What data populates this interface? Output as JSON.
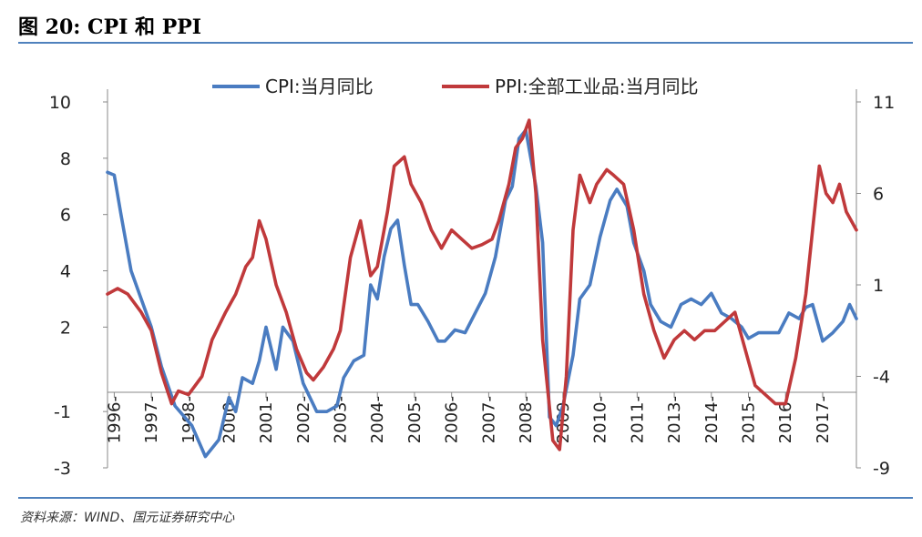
{
  "figure": {
    "title": "图 20: CPI 和 PPI",
    "source": "资料来源：WIND、国元证券研究中心"
  },
  "colors": {
    "cpi": "#4a7cc1",
    "ppi": "#c0393b",
    "rule": "#4f81bd",
    "axis": "#888888"
  },
  "chart_data": {
    "type": "line",
    "title": "",
    "legend": [
      "CPI:当月同比",
      "PPI:全部工业品:当月同比"
    ],
    "legend_position": "top",
    "left_axis": {
      "ylim": [
        -3,
        10
      ],
      "ticks": [
        -3,
        -1,
        2,
        4,
        6,
        8,
        10
      ]
    },
    "right_axis": {
      "ylim": [
        -9,
        11
      ],
      "ticks": [
        -9,
        -4,
        1,
        6,
        11
      ]
    },
    "x_range": [
      1996.0,
      2018.2
    ],
    "x_tick_labels": [
      "1996-",
      "1997-",
      "1998-",
      "2000-",
      "2001-",
      "2002-",
      "2003-",
      "2004-",
      "2005-",
      "2006-",
      "2007-",
      "2008-",
      "2009-",
      "2010-",
      "2011-",
      "2013-",
      "2014-",
      "2015-",
      "2016-",
      "2017-"
    ],
    "x_tick_positions": [
      1996.2,
      1997.3,
      1998.4,
      1999.6,
      2000.7,
      2001.8,
      2002.9,
      2004.0,
      2005.1,
      2006.2,
      2007.3,
      2008.4,
      2009.5,
      2010.6,
      2011.7,
      2012.8,
      2013.9,
      2015.0,
      2016.1,
      2017.2
    ],
    "series": [
      {
        "name": "CPI:当月同比",
        "axis": "left",
        "x": [
          1996.0,
          1996.2,
          1996.4,
          1996.7,
          1997.0,
          1997.3,
          1997.6,
          1998.0,
          1998.5,
          1998.9,
          1999.3,
          1999.6,
          1999.8,
          2000.0,
          2000.3,
          2000.5,
          2000.7,
          2001.0,
          2001.2,
          2001.5,
          2001.8,
          2002.0,
          2002.2,
          2002.5,
          2002.8,
          2003.0,
          2003.3,
          2003.6,
          2003.8,
          2004.0,
          2004.2,
          2004.4,
          2004.6,
          2004.8,
          2005.0,
          2005.2,
          2005.5,
          2005.8,
          2006.0,
          2006.3,
          2006.6,
          2006.9,
          2007.2,
          2007.5,
          2007.8,
          2008.0,
          2008.2,
          2008.4,
          2008.7,
          2008.9,
          2009.1,
          2009.3,
          2009.5,
          2009.8,
          2010.0,
          2010.3,
          2010.6,
          2010.9,
          2011.1,
          2011.4,
          2011.6,
          2011.9,
          2012.1,
          2012.4,
          2012.7,
          2013.0,
          2013.3,
          2013.6,
          2013.9,
          2014.2,
          2014.5,
          2014.8,
          2015.0,
          2015.3,
          2015.6,
          2015.9,
          2016.2,
          2016.5,
          2016.7,
          2016.9,
          2017.2,
          2017.5,
          2017.8,
          2018.0,
          2018.2
        ],
        "values": [
          7.5,
          7.4,
          6.0,
          4.0,
          3.0,
          2.0,
          0.6,
          -0.8,
          -1.5,
          -2.6,
          -2.0,
          -0.5,
          -1.0,
          0.2,
          0.0,
          0.8,
          2.0,
          0.5,
          2.0,
          1.5,
          0.0,
          -0.5,
          -1.0,
          -1.0,
          -0.8,
          0.2,
          0.8,
          1.0,
          3.5,
          3.0,
          4.5,
          5.5,
          5.8,
          4.2,
          2.8,
          2.8,
          2.2,
          1.5,
          1.5,
          1.9,
          1.8,
          2.5,
          3.2,
          4.5,
          6.5,
          7.0,
          8.7,
          9.0,
          7.0,
          5.0,
          -1.2,
          -1.5,
          -0.8,
          1.0,
          3.0,
          3.5,
          5.2,
          6.5,
          6.9,
          6.3,
          5.0,
          4.0,
          2.8,
          2.2,
          2.0,
          2.8,
          3.0,
          2.8,
          3.2,
          2.5,
          2.3,
          2.0,
          1.6,
          1.8,
          1.8,
          1.8,
          2.5,
          2.3,
          2.7,
          2.8,
          1.5,
          1.8,
          2.2,
          2.8,
          2.3
        ]
      },
      {
        "name": "PPI:全部工业品:当月同比",
        "axis": "right",
        "x": [
          1996.0,
          1996.3,
          1996.6,
          1997.0,
          1997.3,
          1997.6,
          1997.9,
          1998.1,
          1998.4,
          1998.8,
          1999.1,
          1999.5,
          1999.8,
          2000.1,
          2000.3,
          2000.5,
          2000.7,
          2001.0,
          2001.3,
          2001.6,
          2001.9,
          2002.1,
          2002.4,
          2002.7,
          2002.9,
          2003.2,
          2003.5,
          2003.8,
          2004.0,
          2004.3,
          2004.5,
          2004.8,
          2005.0,
          2005.3,
          2005.6,
          2005.9,
          2006.2,
          2006.5,
          2006.8,
          2007.1,
          2007.4,
          2007.6,
          2007.9,
          2008.1,
          2008.3,
          2008.5,
          2008.7,
          2008.9,
          2009.2,
          2009.4,
          2009.6,
          2009.8,
          2010.0,
          2010.3,
          2010.5,
          2010.8,
          2011.0,
          2011.3,
          2011.6,
          2011.9,
          2012.2,
          2012.5,
          2012.8,
          2013.1,
          2013.4,
          2013.7,
          2014.0,
          2014.3,
          2014.6,
          2014.9,
          2015.2,
          2015.5,
          2015.8,
          2016.1,
          2016.4,
          2016.7,
          2016.9,
          2017.1,
          2017.3,
          2017.5,
          2017.7,
          2017.9,
          2018.2
        ],
        "values": [
          0.5,
          0.8,
          0.5,
          -0.5,
          -1.5,
          -3.8,
          -5.5,
          -4.8,
          -5.0,
          -4.0,
          -2.0,
          -0.5,
          0.5,
          2.0,
          2.5,
          4.5,
          3.5,
          1.0,
          -0.5,
          -2.5,
          -3.8,
          -4.2,
          -3.5,
          -2.5,
          -1.5,
          2.5,
          4.5,
          1.5,
          2.0,
          5.0,
          7.5,
          8.0,
          6.5,
          5.5,
          4.0,
          3.0,
          4.0,
          3.5,
          3.0,
          3.2,
          3.5,
          4.5,
          6.5,
          8.5,
          9.0,
          10.0,
          6.0,
          -2.0,
          -7.5,
          -8.0,
          -4.0,
          4.0,
          7.0,
          5.5,
          6.5,
          7.3,
          7.0,
          6.5,
          4.0,
          0.5,
          -1.5,
          -3.0,
          -2.0,
          -1.5,
          -2.0,
          -1.5,
          -1.5,
          -1.0,
          -0.5,
          -2.5,
          -4.5,
          -5.0,
          -5.5,
          -5.5,
          -3.0,
          0.5,
          4.0,
          7.5,
          6.0,
          5.5,
          6.5,
          5.0,
          4.0
        ]
      }
    ]
  }
}
